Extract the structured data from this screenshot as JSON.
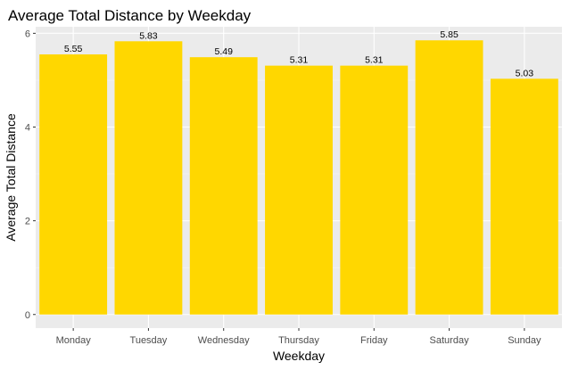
{
  "chart_data": {
    "type": "bar",
    "title": "Average Total Distance by Weekday",
    "xlabel": "Weekday",
    "ylabel": "Average Total Distance",
    "categories": [
      "Monday",
      "Tuesday",
      "Wednesday",
      "Thursday",
      "Friday",
      "Saturday",
      "Sunday"
    ],
    "values": [
      5.55,
      5.83,
      5.49,
      5.31,
      5.31,
      5.85,
      5.03
    ],
    "data_labels": [
      "5.55",
      "5.83",
      "5.49",
      "5.31",
      "5.31",
      "5.85",
      "5.03"
    ],
    "yticks": [
      0,
      2,
      4,
      6
    ],
    "ytick_labels": [
      "0",
      "2",
      "4",
      "6"
    ],
    "ylim": [
      -0.29,
      6.14
    ],
    "grid": true,
    "legend": "none",
    "colors": {
      "bar": "#FFD700",
      "panel_background": "#EBEBEB",
      "grid_major": "#FFFFFF",
      "grid_minor": "#F5F5F5",
      "tick_text": "#4D4D4D",
      "tick_mark": "#333333",
      "text": "#000000"
    }
  }
}
